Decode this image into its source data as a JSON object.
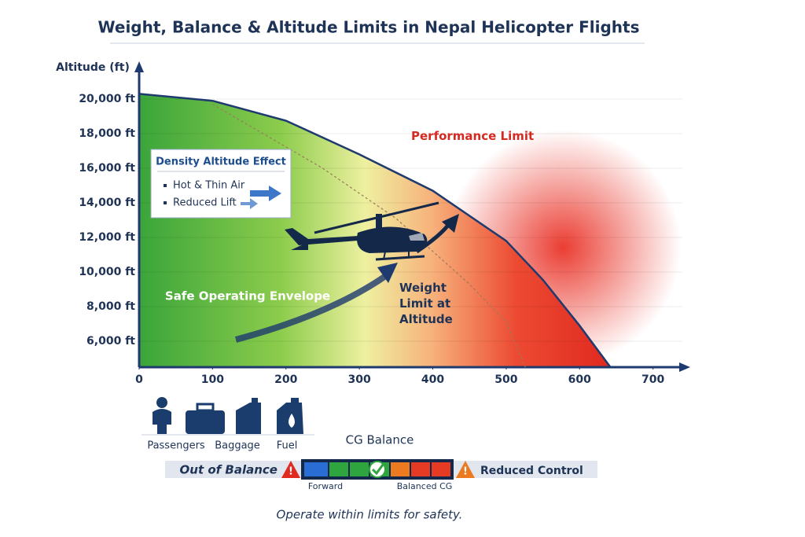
{
  "chart_data": {
    "type": "line",
    "title": "Weight, Balance & Altitude Limits in Nepal Helicopter Flights",
    "y_label": "Altitude (ft)",
    "xlim": [
      0,
      740
    ],
    "ylim": [
      4500,
      22000
    ],
    "xticks": [
      0,
      100,
      200,
      300,
      400,
      500,
      600,
      700
    ],
    "yticks": [
      {
        "value": 6000,
        "label": "6,000 ft"
      },
      {
        "value": 8000,
        "label": "8,000 ft"
      },
      {
        "value": 10000,
        "label": "10,000 ft"
      },
      {
        "value": 12000,
        "label": "12,000 ft"
      },
      {
        "value": 14000,
        "label": "14,000 ft"
      },
      {
        "value": 16000,
        "label": "16,000 ft"
      },
      {
        "value": 18000,
        "label": "18,000 ft"
      },
      {
        "value": 20000,
        "label": "20,000 ft"
      }
    ],
    "grid": true,
    "series": [
      {
        "name": "Performance Limit",
        "color": "#1e3a6e",
        "dashed": false,
        "x": [
          0,
          100,
          200,
          300,
          400,
          500,
          550,
          600,
          642
        ],
        "values": [
          20300,
          19900,
          18750,
          16800,
          14700,
          11800,
          9550,
          6900,
          4500
        ]
      },
      {
        "name": "Weight Limit at Altitude",
        "color": "#9a7a5a",
        "dashed": true,
        "x": [
          100,
          250,
          350,
          450,
          500,
          526
        ],
        "values": [
          19700,
          16000,
          13100,
          9300,
          7100,
          4500
        ]
      }
    ],
    "annotations": [
      "Safe Operating Envelope"
    ]
  },
  "density_box": {
    "title": "Density Altitude Effect",
    "items": [
      "Hot & Thin Air",
      "Reduced Lift"
    ]
  },
  "loads": [
    "Passengers",
    "Baggage",
    "Fuel"
  ],
  "cg": {
    "title": "CG Balance",
    "left": "Out of Balance",
    "right": "Reduced Control",
    "labels": [
      "Forward",
      "Balanced CG"
    ]
  },
  "footer": "Operate within limits for safety."
}
